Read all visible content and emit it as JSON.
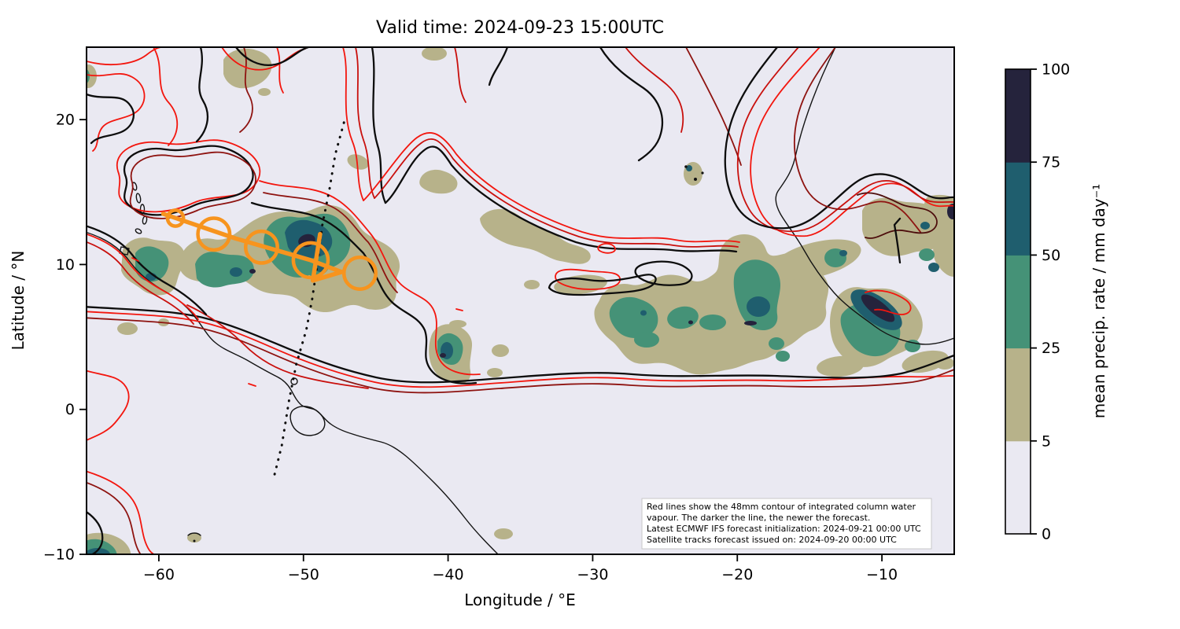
{
  "chart_data": {
    "type": "map-contour",
    "title": "Valid time: 2024-09-23 15:00UTC",
    "xlabel": "Longitude / °E",
    "ylabel": "Latitude / °N",
    "xlim": [
      -65,
      -5
    ],
    "ylim": [
      -10,
      25
    ],
    "grid": false,
    "x_ticks": [
      {
        "value": -60,
        "label": "−60"
      },
      {
        "value": -50,
        "label": "−50"
      },
      {
        "value": -40,
        "label": "−40"
      },
      {
        "value": -30,
        "label": "−30"
      },
      {
        "value": -20,
        "label": "−20"
      },
      {
        "value": -10,
        "label": "−10"
      }
    ],
    "y_ticks": [
      {
        "value": 20,
        "label": "20"
      },
      {
        "value": 10,
        "label": "10"
      },
      {
        "value": 0,
        "label": "0"
      },
      {
        "value": -10,
        "label": "−10"
      }
    ],
    "colorbar": {
      "label": "mean precip. rate / mm day⁻¹",
      "tick_labels": [
        "0",
        "5",
        "25",
        "50",
        "75",
        "100"
      ],
      "levels": [
        {
          "from": 0,
          "to": 5,
          "color": "#eae9f2"
        },
        {
          "from": 5,
          "to": 25,
          "color": "#b7b28a"
        },
        {
          "from": 25,
          "to": 50,
          "color": "#459277"
        },
        {
          "from": 50,
          "to": 75,
          "color": "#1f5e6e"
        },
        {
          "from": 75,
          "to": 100,
          "color": "#25233c"
        }
      ]
    },
    "colors": {
      "ocean_background": "#eae9f2",
      "coastline": "#141414",
      "iwv_contour_shades_old_to_new": [
        "#f3160e",
        "#c9100d",
        "#8e1310",
        "#4d0d0c",
        "#0d0d0d"
      ],
      "satellite_track": "#f7941e"
    },
    "contour_info": "Red lines: 48mm contour of integrated column water vapour; darker line = newer forecast; black = newest ECMWF IFS forecast",
    "satellite_track": {
      "color": "#f7941e",
      "circles": [
        {
          "lon": -58.85,
          "lat": 13.2,
          "r_deg": 0.55
        },
        {
          "lon": -56.2,
          "lat": 12.1,
          "r_deg": 1.1
        },
        {
          "lon": -52.9,
          "lat": 11.2,
          "r_deg": 1.1
        },
        {
          "lon": -49.5,
          "lat": 10.3,
          "r_deg": 1.2
        },
        {
          "lon": -46.1,
          "lat": 9.4,
          "r_deg": 1.1
        }
      ],
      "segments": [
        [
          [
            -59.7,
            13.5
          ],
          [
            -54.7,
            11.8
          ],
          [
            -49.5,
            10.3
          ],
          [
            -47.4,
            9.5
          ]
        ],
        [
          [
            -48.85,
            12.1
          ],
          [
            -49.35,
            8.9
          ]
        ],
        [
          [
            -49.35,
            8.9
          ],
          [
            -47.3,
            9.5
          ]
        ]
      ]
    },
    "dotted_track": {
      "color": "#0d0d0d",
      "points": [
        [
          -47.2,
          19.8
        ],
        [
          -47.8,
          17.6
        ],
        [
          -48.2,
          15.2
        ],
        [
          -48.7,
          12.7
        ],
        [
          -49.0,
          10.3
        ],
        [
          -49.4,
          7.6
        ],
        [
          -49.8,
          5.5
        ],
        [
          -50.5,
          3.1
        ],
        [
          -51.0,
          0.6
        ],
        [
          -51.5,
          -2.5
        ],
        [
          -52.1,
          -4.9
        ]
      ]
    },
    "annotation_lines": [
      "Red lines show the 48mm contour of integrated column water",
      "vapour. The darker the line, the newer the forecast.",
      "Latest ECMWF IFS forecast initialization: 2024-09-21 00:00 UTC",
      "Satellite tracks forecast issued on: 2024-09-20 00:00 UTC"
    ]
  }
}
